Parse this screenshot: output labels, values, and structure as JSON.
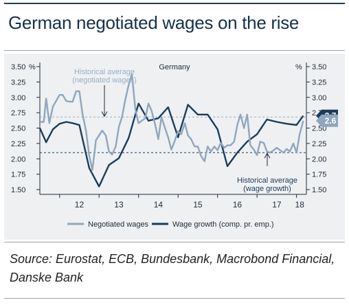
{
  "title": "German negotiated wages on the rise",
  "source": "Source: Eurostat, ECB, Bundesbank, Macrobond Financial, Danske Bank",
  "chart_data": {
    "type": "line",
    "title": "Germany",
    "ylabel_left": "%",
    "ylabel_right": "%",
    "ylim": [
      1.5,
      3.5
    ],
    "yticks": [
      "3.50",
      "3.25",
      "3.00",
      "2.75",
      "2.50",
      "2.25",
      "2.00",
      "1.75",
      "1.50"
    ],
    "xlim": [
      2011.5,
      2018.25
    ],
    "xticks": [
      "12",
      "13",
      "14",
      "15",
      "16",
      "17",
      "18"
    ],
    "reference_lines": [
      {
        "label": "Historical average (negotiated wages)",
        "value": 2.68,
        "color": "#9aaec2"
      },
      {
        "label": "Historical average (wage growth)",
        "value": 2.1,
        "color": "#1b3c5a"
      }
    ],
    "end_labels": [
      {
        "series": "Wage growth (comp. pr. emp.)",
        "text": "2.7",
        "color": "#1b3c5a"
      },
      {
        "series": "Negotiated wages",
        "text": "2.6",
        "color": "#8fa6bd"
      }
    ],
    "legend": "bottom",
    "series": [
      {
        "name": "Negotiated wages",
        "color": "#8fa6bd",
        "x": [
          2011.5,
          2011.6,
          2011.66,
          2011.74,
          2011.83,
          2011.92,
          2012.0,
          2012.08,
          2012.17,
          2012.25,
          2012.33,
          2012.42,
          2012.5,
          2012.58,
          2012.67,
          2012.75,
          2012.83,
          2012.92,
          2013.0,
          2013.08,
          2013.17,
          2013.25,
          2013.33,
          2013.42,
          2013.5,
          2013.58,
          2013.67,
          2013.75,
          2013.83,
          2013.92,
          2014.0,
          2014.08,
          2014.17,
          2014.25,
          2014.33,
          2014.42,
          2014.5,
          2014.58,
          2014.67,
          2014.75,
          2014.83,
          2014.92,
          2015.0,
          2015.08,
          2015.17,
          2015.25,
          2015.33,
          2015.42,
          2015.5,
          2015.58,
          2015.67,
          2015.75,
          2015.83,
          2015.92,
          2016.0,
          2016.08,
          2016.17,
          2016.25,
          2016.33,
          2016.42,
          2016.5,
          2016.58,
          2016.67,
          2016.75,
          2016.83,
          2016.92,
          2017.0,
          2017.08,
          2017.17,
          2017.25,
          2017.33,
          2017.42,
          2017.5,
          2017.58,
          2017.67,
          2017.75,
          2017.83,
          2017.92,
          2018.0,
          2018.08,
          2018.17
        ],
        "values": [
          2.6,
          2.6,
          2.98,
          2.58,
          2.85,
          2.95,
          3.04,
          3.04,
          2.94,
          2.93,
          2.93,
          3.1,
          3.1,
          2.73,
          2.45,
          2.05,
          1.82,
          2.3,
          2.38,
          2.46,
          2.38,
          2.12,
          2.07,
          2.2,
          2.52,
          2.68,
          2.98,
          3.2,
          3.38,
          2.8,
          2.58,
          2.62,
          2.66,
          2.9,
          2.78,
          2.56,
          2.32,
          2.68,
          2.5,
          2.35,
          2.15,
          2.3,
          2.45,
          2.4,
          2.58,
          2.38,
          2.32,
          2.2,
          2.2,
          2.05,
          1.96,
          2.2,
          2.12,
          2.2,
          2.14,
          2.26,
          2.18,
          2.22,
          2.22,
          2.28,
          2.55,
          2.72,
          2.5,
          2.72,
          2.22,
          2.15,
          2.06,
          2.28,
          2.26,
          2.12,
          2.1,
          2.14,
          2.18,
          2.14,
          2.1,
          2.16,
          2.12,
          2.25,
          2.1,
          2.4,
          2.62
        ]
      },
      {
        "name": "Wage growth (comp. pr. emp.)",
        "color": "#1b3c5a",
        "x": [
          2011.5,
          2011.66,
          2011.83,
          2012.0,
          2012.17,
          2012.33,
          2012.5,
          2012.75,
          2013.0,
          2013.25,
          2013.5,
          2013.75,
          2014.0,
          2014.25,
          2014.5,
          2014.75,
          2015.0,
          2015.25,
          2015.5,
          2015.75,
          2016.0,
          2016.25,
          2016.5,
          2016.75,
          2017.0,
          2017.25,
          2017.5,
          2017.75,
          2018.0,
          2018.17
        ],
        "values": [
          2.5,
          2.27,
          2.48,
          2.57,
          2.6,
          2.58,
          2.55,
          1.85,
          1.55,
          1.9,
          2.01,
          2.34,
          2.9,
          2.62,
          2.66,
          2.84,
          2.35,
          2.88,
          2.72,
          2.72,
          2.48,
          1.88,
          2.1,
          2.28,
          2.4,
          2.64,
          2.6,
          2.57,
          2.55,
          2.7
        ]
      }
    ]
  }
}
